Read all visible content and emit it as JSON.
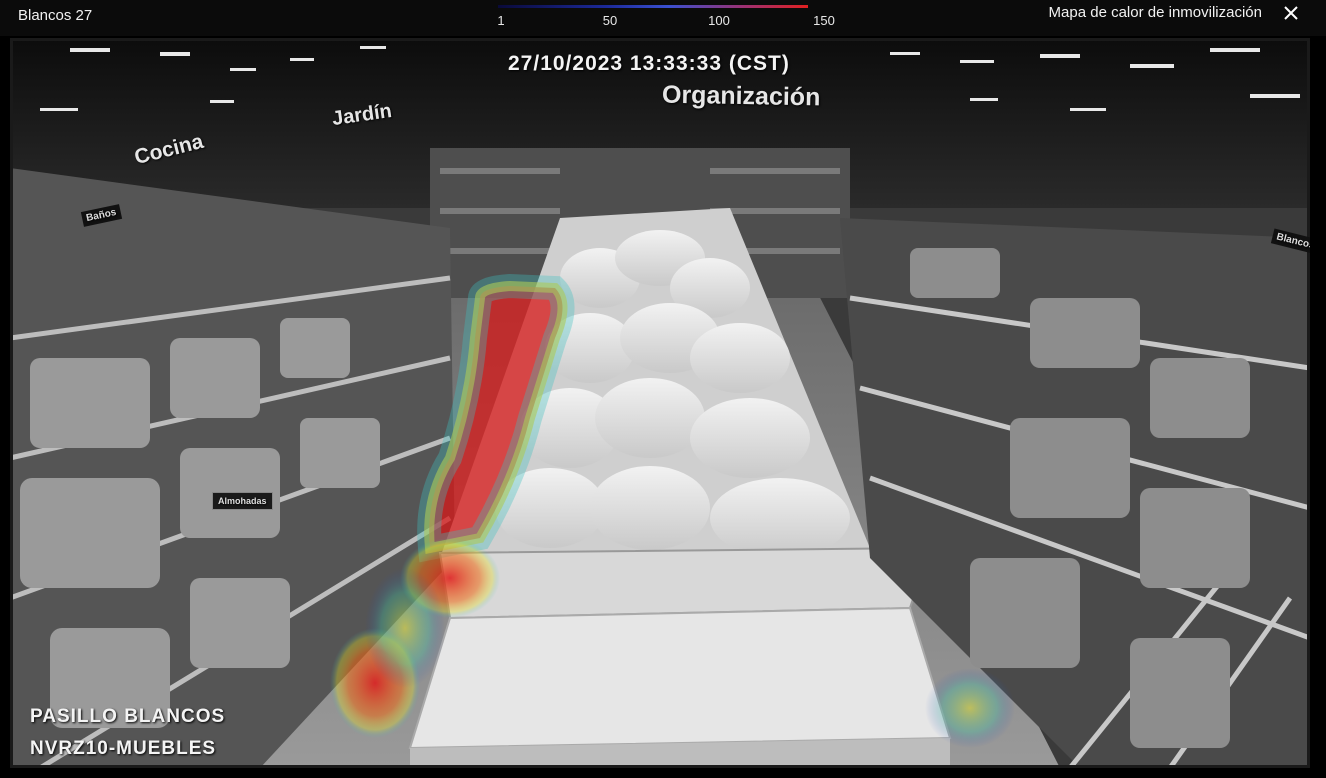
{
  "window": {
    "title": "Blancos 27",
    "heatmap_title": "Mapa de calor de inmovilización",
    "close_icon": "close-icon"
  },
  "legend": {
    "ticks": [
      {
        "value": 1,
        "label": "1"
      },
      {
        "value": 50,
        "label": "50"
      },
      {
        "value": 100,
        "label": "100"
      },
      {
        "value": 150,
        "label": "150"
      }
    ],
    "min": 1,
    "max": 150,
    "colors": [
      "#0a0a3a",
      "#3a50d0",
      "#e02020"
    ]
  },
  "video": {
    "timestamp": "27/10/2023 13:33:33 (CST)",
    "camera_location": "PASILLO BLANCOS",
    "camera_name": "NVRZ10-MUEBLES",
    "signs": {
      "organizacion": "Organización",
      "jardin": "Jardín",
      "cocina": "Cocina",
      "banos": "Baños",
      "blancos": "Blancos",
      "almohadas": "Almohadas"
    }
  }
}
